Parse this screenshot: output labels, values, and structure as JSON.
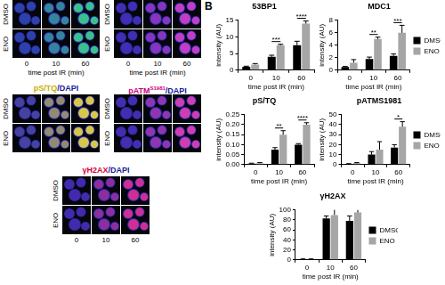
{
  "panel_labels": [
    "B"
  ],
  "micrographs": [
    {
      "rows": [
        "DMSO",
        "ENO"
      ],
      "columns": [
        "0",
        "10",
        "60"
      ],
      "xlabel": "time post IR (min)"
    },
    {
      "rows": [
        "DMSO",
        "ENO"
      ],
      "columns": [
        "0",
        "10",
        "60"
      ],
      "xlabel": "time post IR (min)"
    },
    {
      "stain": "pS/TQ",
      "counterstain": "/DAPI",
      "rows": [
        "DMSO",
        "ENO"
      ]
    },
    {
      "stain": "pATMS1981",
      "stain_superscript": "S1981",
      "counterstain": "/DAPI",
      "rows": [
        "DMSO",
        "ENO"
      ]
    },
    {
      "stain": "γH2AX",
      "counterstain": "/DAPI",
      "rows": [
        "DMSO",
        "ENO"
      ],
      "columns": [
        "0",
        "10",
        "60"
      ]
    }
  ],
  "chart_data": [
    {
      "type": "bar",
      "title": "53BP1",
      "xlabel": "time post IR (min)",
      "ylabel": "intensity (AU)",
      "categories": [
        "0",
        "10",
        "60"
      ],
      "series": [
        {
          "name": "DMSO",
          "color": "#000000",
          "values": [
            1,
            4,
            7.5
          ],
          "errors": [
            0.2,
            0.5,
            1.2
          ]
        },
        {
          "name": "ENO",
          "color": "#a6a6a6",
          "values": [
            1.7,
            7.5,
            14
          ],
          "errors": [
            0.3,
            0.3,
            0.8
          ]
        }
      ],
      "significance": [
        null,
        "***",
        "****"
      ],
      "ylim": [
        0,
        15
      ],
      "yticks": [
        0,
        5,
        10,
        15
      ],
      "grid": false,
      "legend": false
    },
    {
      "type": "bar",
      "title": "MDC1",
      "xlabel": "time post IR (min)",
      "ylabel": "intensity (AU)",
      "categories": [
        "0",
        "10",
        "60"
      ],
      "series": [
        {
          "name": "DMSO",
          "color": "#000000",
          "values": [
            0.5,
            1.8,
            2.3
          ],
          "errors": [
            0.1,
            0.3,
            0.3
          ]
        },
        {
          "name": "ENO",
          "color": "#a6a6a6",
          "values": [
            1.2,
            5,
            6
          ],
          "errors": [
            0.5,
            0.3,
            1.2
          ]
        }
      ],
      "significance": [
        null,
        "**",
        "***"
      ],
      "ylim": [
        0,
        8
      ],
      "yticks": [
        0,
        2,
        4,
        6,
        8
      ],
      "grid": false,
      "legend": "right"
    },
    {
      "type": "bar",
      "title": "pS/TQ",
      "xlabel": "time post IR (min)",
      "ylabel": "intensity (AU)",
      "categories": [
        "0",
        "10",
        "60"
      ],
      "series": [
        {
          "name": "DMSO",
          "color": "#000000",
          "values": [
            0.005,
            0.075,
            0.1
          ],
          "errors": [
            0.002,
            0.01,
            0.005
          ]
        },
        {
          "name": "ENO",
          "color": "#a6a6a6",
          "values": [
            0.007,
            0.15,
            0.2
          ],
          "errors": [
            0.003,
            0.02,
            0.01
          ]
        }
      ],
      "significance": [
        null,
        "**",
        "****"
      ],
      "ylim": [
        0,
        0.25
      ],
      "yticks": [
        {
          "value": 0,
          "label": "0.00"
        },
        0.05,
        {
          "value": 0.1,
          "label": "0.10"
        },
        0.15,
        {
          "value": 0.2,
          "label": "0.20"
        },
        0.25
      ],
      "grid": false,
      "legend": false
    },
    {
      "type": "bar",
      "title": "pATMS1981",
      "xlabel": "time post IR (min)",
      "ylabel": "intensity (AU)",
      "categories": [
        "0",
        "10",
        "60"
      ],
      "series": [
        {
          "name": "DMSO",
          "color": "#000000",
          "values": [
            0.5,
            10,
            17
          ],
          "errors": [
            0.5,
            3,
            3
          ]
        },
        {
          "name": "ENO",
          "color": "#a6a6a6",
          "values": [
            1.5,
            15,
            38
          ],
          "errors": [
            0.5,
            8,
            5
          ]
        }
      ],
      "significance": [
        null,
        null,
        "*"
      ],
      "ylim": [
        0,
        50
      ],
      "yticks": [
        0,
        10,
        20,
        30,
        40,
        50
      ],
      "grid": false,
      "legend": "right"
    },
    {
      "type": "bar",
      "title": "γH2AX",
      "xlabel": "time post IR (min)",
      "ylabel": "intensity (AU)",
      "categories": [
        "0",
        "10",
        "60"
      ],
      "series": [
        {
          "name": "DMSO",
          "color": "#000000",
          "values": [
            1,
            83,
            78
          ],
          "errors": [
            1,
            5,
            10
          ]
        },
        {
          "name": "ENO",
          "color": "#a6a6a6",
          "values": [
            1,
            90,
            95
          ],
          "errors": [
            1,
            12,
            10
          ]
        }
      ],
      "significance": [
        null,
        null,
        null
      ],
      "ylim": [
        0,
        100
      ],
      "yticks": [
        0,
        20,
        40,
        60,
        80,
        100
      ],
      "grid": false,
      "legend": "right"
    }
  ]
}
